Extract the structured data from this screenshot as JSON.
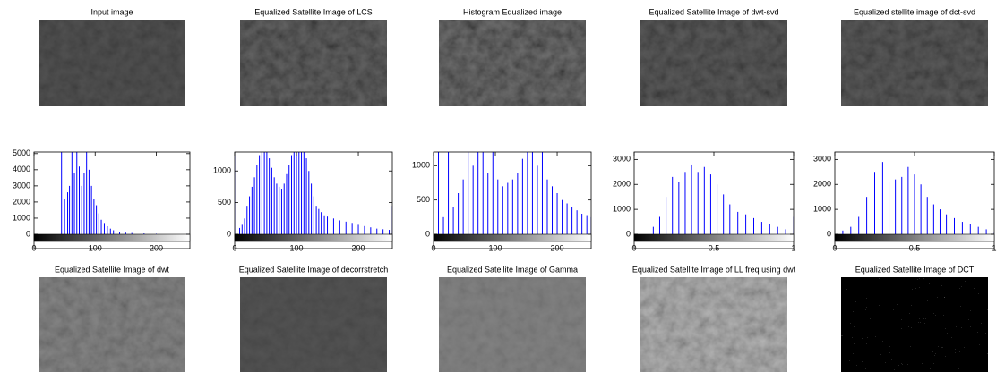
{
  "image_titles": [
    "Input image",
    "Equalized Satellite Image of LCS",
    "Histogram Equalized image",
    "Equalized Satellite Image of dwt-svd",
    "Equalized stellite image of dct-svd",
    "Equalized Satellite Image of dwt",
    "Equalized Satellite Image of decorrstretch",
    "Equalized Satellite Image of Gamma",
    "Equalized Satellite Image of LL freq using dwt",
    "Equalized Satellite Image of DCT"
  ],
  "chart_data": [
    {
      "type": "stem",
      "color": "#0000ff",
      "xlim": [
        0,
        255
      ],
      "ylim": [
        0,
        5100
      ],
      "xticks": [
        0,
        100,
        200
      ],
      "yticks": [
        0,
        1000,
        2000,
        3000,
        4000,
        5000
      ],
      "x": [
        45,
        50,
        55,
        58,
        62,
        66,
        70,
        74,
        78,
        82,
        86,
        90,
        94,
        98,
        102,
        106,
        110,
        115,
        120,
        125,
        130,
        140,
        150,
        160,
        180,
        200,
        250
      ],
      "values": [
        5100,
        2200,
        2600,
        3000,
        5100,
        3800,
        5100,
        4200,
        3000,
        3800,
        5100,
        4000,
        3000,
        2200,
        1800,
        1300,
        900,
        700,
        500,
        350,
        250,
        150,
        100,
        80,
        50,
        30,
        20
      ]
    },
    {
      "type": "stem",
      "color": "#0000ff",
      "xlim": [
        0,
        255
      ],
      "ylim": [
        0,
        1300
      ],
      "xticks": [
        0,
        100,
        200
      ],
      "yticks": [
        0,
        500,
        1000
      ],
      "x": [
        0,
        8,
        12,
        16,
        20,
        24,
        28,
        32,
        36,
        40,
        44,
        48,
        52,
        56,
        60,
        64,
        68,
        72,
        76,
        80,
        84,
        88,
        92,
        96,
        100,
        104,
        108,
        112,
        116,
        120,
        124,
        128,
        132,
        136,
        140,
        145,
        150,
        160,
        170,
        180,
        190,
        200,
        210,
        220,
        230,
        240,
        250,
        255
      ],
      "values": [
        1300,
        100,
        150,
        250,
        450,
        600,
        750,
        900,
        1100,
        1250,
        1300,
        1300,
        1300,
        1200,
        1050,
        900,
        800,
        750,
        720,
        800,
        950,
        1100,
        1250,
        1300,
        1300,
        1300,
        1300,
        1300,
        1200,
        1000,
        800,
        600,
        450,
        400,
        350,
        300,
        280,
        250,
        220,
        200,
        180,
        150,
        130,
        110,
        90,
        80,
        70,
        450
      ]
    },
    {
      "type": "stem",
      "color": "#0000ff",
      "xlim": [
        0,
        255
      ],
      "ylim": [
        0,
        1200
      ],
      "xticks": [
        0,
        100,
        200
      ],
      "yticks": [
        0,
        500,
        1000
      ],
      "x": [
        0,
        8,
        16,
        24,
        32,
        40,
        48,
        56,
        64,
        72,
        80,
        88,
        96,
        104,
        112,
        120,
        128,
        136,
        144,
        152,
        160,
        168,
        176,
        184,
        192,
        200,
        208,
        216,
        224,
        232,
        240,
        248,
        255
      ],
      "values": [
        200,
        1200,
        250,
        1200,
        400,
        600,
        800,
        1200,
        1000,
        1200,
        1200,
        900,
        1200,
        800,
        700,
        750,
        800,
        900,
        1100,
        1200,
        1200,
        1000,
        1200,
        800,
        700,
        600,
        500,
        450,
        400,
        350,
        300,
        280,
        250
      ]
    },
    {
      "type": "stem",
      "color": "#0000ff",
      "xlim": [
        0,
        1
      ],
      "ylim": [
        0,
        3300
      ],
      "xticks": [
        0,
        0.5,
        1
      ],
      "yticks": [
        0,
        1000,
        2000,
        3000
      ],
      "x": [
        0.12,
        0.16,
        0.2,
        0.24,
        0.28,
        0.32,
        0.36,
        0.4,
        0.44,
        0.48,
        0.52,
        0.56,
        0.6,
        0.65,
        0.7,
        0.75,
        0.8,
        0.85,
        0.9,
        0.95,
        1
      ],
      "values": [
        300,
        700,
        1500,
        2300,
        2100,
        2500,
        2800,
        2500,
        2700,
        2400,
        2000,
        1600,
        1200,
        900,
        800,
        650,
        500,
        400,
        300,
        200,
        700
      ]
    },
    {
      "type": "stem",
      "color": "#0000ff",
      "xlim": [
        0,
        1
      ],
      "ylim": [
        0,
        3300
      ],
      "xticks": [
        0,
        0.5,
        1
      ],
      "yticks": [
        0,
        1000,
        2000,
        3000
      ],
      "x": [
        0.05,
        0.1,
        0.15,
        0.2,
        0.25,
        0.3,
        0.34,
        0.38,
        0.42,
        0.46,
        0.5,
        0.54,
        0.58,
        0.62,
        0.66,
        0.7,
        0.75,
        0.8,
        0.85,
        0.9,
        0.95,
        1
      ],
      "values": [
        150,
        300,
        700,
        1500,
        2500,
        2900,
        2100,
        2200,
        2300,
        2700,
        2400,
        2000,
        1500,
        1200,
        1000,
        800,
        650,
        500,
        400,
        300,
        200,
        100
      ]
    }
  ]
}
